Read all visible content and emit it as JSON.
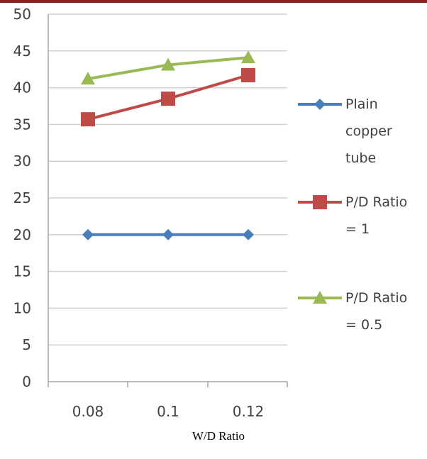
{
  "colors": {
    "top_bar": "#8b1e1e",
    "gridline": "#d0d0d0",
    "axis": "#a6a6a6"
  },
  "chart_data": {
    "type": "line",
    "title": "",
    "xlabel": "W/D Ratio",
    "ylabel": "",
    "categories": [
      "0.08",
      "0.1",
      "0.12"
    ],
    "ylim": [
      0,
      50
    ],
    "yticks": [
      0,
      5,
      10,
      15,
      20,
      25,
      30,
      35,
      40,
      45,
      50
    ],
    "grid": true,
    "legend_position": "right",
    "series": [
      {
        "name": "Plain copper tube",
        "legend_lines": [
          "Plain",
          "copper",
          "tube"
        ],
        "values": [
          20,
          20,
          20
        ],
        "color": "#4a7ebb",
        "marker": "diamond"
      },
      {
        "name": "P/D Ratio = 1",
        "legend_lines": [
          "P/D Ratio",
          "= 1"
        ],
        "values": [
          35.7,
          38.5,
          41.7
        ],
        "color": "#be4b48",
        "marker": "square"
      },
      {
        "name": "P/D Ratio = 0.5",
        "legend_lines": [
          "P/D Ratio",
          "= 0.5"
        ],
        "values": [
          41.2,
          43.1,
          44.1
        ],
        "color": "#98b954",
        "marker": "triangle"
      }
    ]
  }
}
